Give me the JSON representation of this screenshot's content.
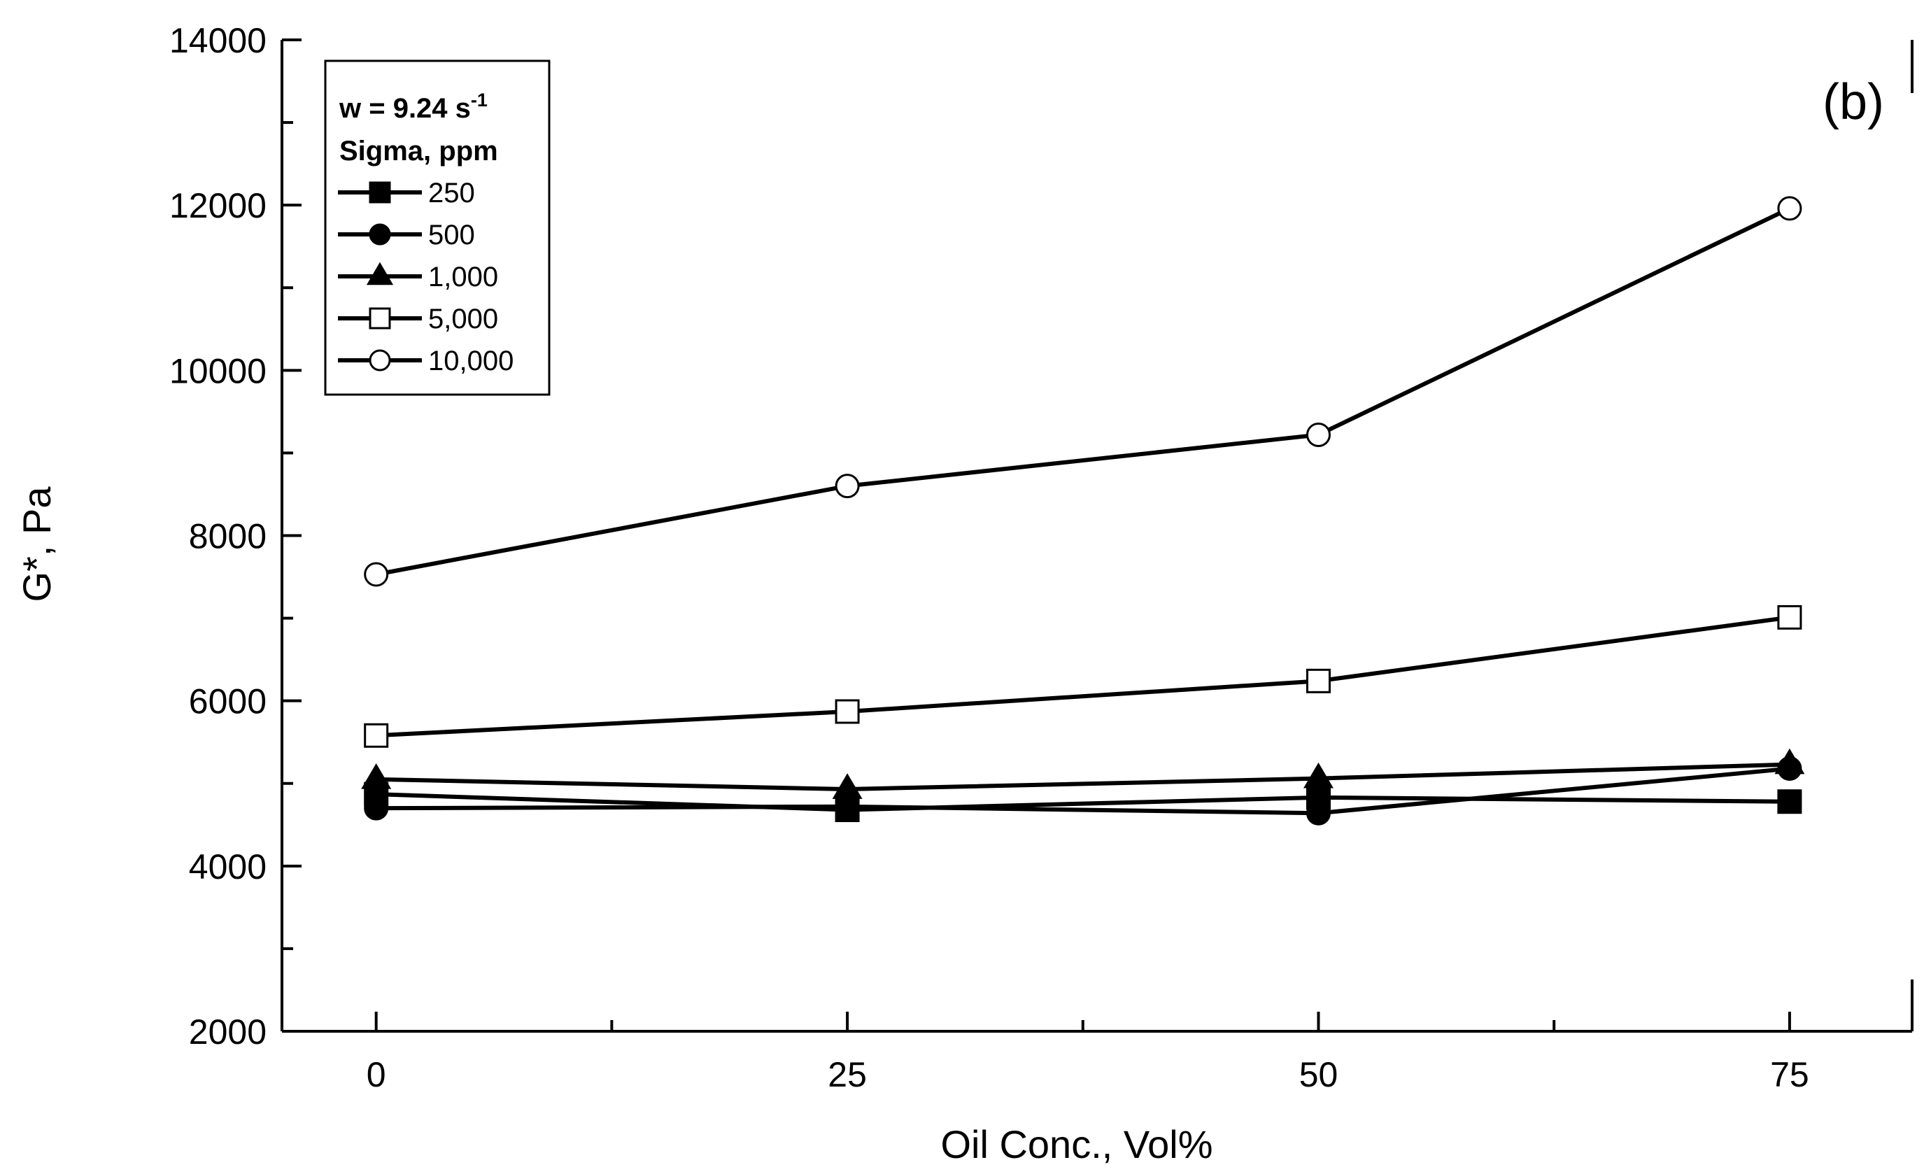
{
  "chart_data": {
    "type": "line",
    "panel_label": "(b)",
    "xlabel": "Oil Conc., Vol%",
    "ylabel": "G*, Pa",
    "x": [
      0,
      25,
      50,
      75
    ],
    "xlim": [
      -5,
      81.5
    ],
    "ylim": [
      2000,
      14000
    ],
    "xticks": [
      0,
      25,
      50,
      75
    ],
    "xtick_labels": [
      "0",
      "25",
      "50",
      "75"
    ],
    "x_minor_ticks": [
      12.5,
      37.5,
      62.5
    ],
    "yticks": [
      2000,
      4000,
      6000,
      8000,
      10000,
      12000,
      14000
    ],
    "ytick_labels": [
      "2000",
      "4000",
      "6000",
      "8000",
      "10000",
      "12000",
      "14000"
    ],
    "y_minor_ticks": [
      3000,
      5000,
      7000,
      9000,
      11000,
      13000
    ],
    "grid": false,
    "legend": {
      "position": "top-left",
      "title_line1_main": "w = 9.24 s",
      "title_line1_sup": "-1",
      "title_line2": "Sigma, ppm"
    },
    "series": [
      {
        "name": "250",
        "marker": "square-filled",
        "values": [
          4870,
          4680,
          4830,
          4780
        ]
      },
      {
        "name": "500",
        "marker": "circle-filled",
        "values": [
          4700,
          4720,
          4640,
          5180
        ]
      },
      {
        "name": "1,000",
        "marker": "triangle-filled",
        "values": [
          5050,
          4930,
          5060,
          5230
        ]
      },
      {
        "name": "5,000",
        "marker": "square-open",
        "values": [
          5580,
          5870,
          6240,
          7010
        ]
      },
      {
        "name": "10,000",
        "marker": "circle-open",
        "values": [
          7530,
          8600,
          9220,
          11960
        ]
      }
    ]
  }
}
